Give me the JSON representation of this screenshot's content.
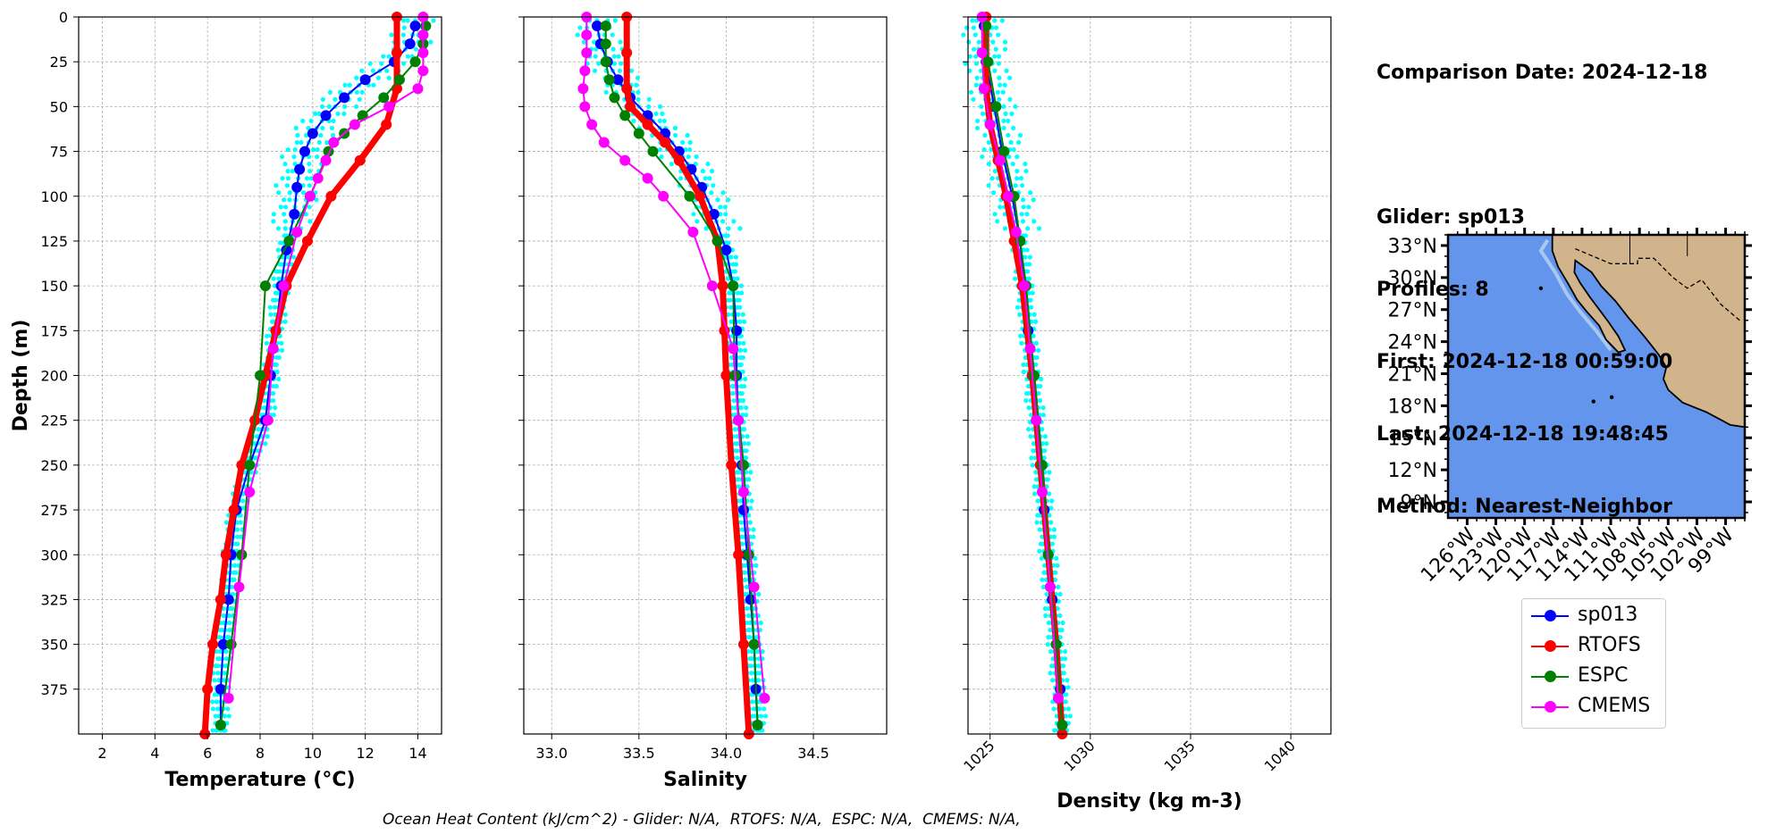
{
  "info": {
    "comparison_date": "Comparison Date: 2024-12-18",
    "glider": "Glider: sp013",
    "profiles": "Profiles: 8",
    "first": "First: 2024-12-18 00:59:00",
    "last": "Last: 2024-12-18 19:48:45",
    "method": "Method: Nearest-Neighbor"
  },
  "footer": "Ocean Heat Content (kJ/cm^2) - Glider: N/A,  RTOFS: N/A,  ESPC: N/A,  CMEMS: N/A,",
  "colors": {
    "sp013": "#0000ff",
    "RTOFS": "#ff0000",
    "ESPC": "#008000",
    "CMEMS": "#ff00ff",
    "raw": "#00ffff",
    "ocean": "#6495ed",
    "land": "#d2b48c"
  },
  "legend": [
    {
      "name": "sp013",
      "color": "#0000ff"
    },
    {
      "name": "RTOFS",
      "color": "#ff0000"
    },
    {
      "name": "ESPC",
      "color": "#008000"
    },
    {
      "name": "CMEMS",
      "color": "#ff00ff"
    }
  ],
  "chart_data": [
    {
      "type": "line",
      "xlabel": "Temperature (°C)",
      "ylabel": "Depth (m)",
      "xlim": [
        1.1,
        14.9
      ],
      "ylim": [
        400,
        0
      ],
      "xticks": [
        2,
        4,
        6,
        8,
        10,
        12,
        14
      ],
      "yticks": [
        0,
        25,
        50,
        75,
        100,
        125,
        150,
        175,
        200,
        225,
        250,
        275,
        300,
        325,
        350,
        375
      ],
      "grid": true,
      "series": [
        {
          "name": "sp013",
          "depth": [
            5,
            15,
            25,
            35,
            45,
            55,
            65,
            75,
            85,
            95,
            110,
            130,
            150,
            175,
            200,
            225,
            250,
            275,
            300,
            325,
            350,
            375,
            395
          ],
          "values": [
            13.9,
            13.7,
            13.1,
            12.0,
            11.2,
            10.5,
            10.0,
            9.7,
            9.5,
            9.4,
            9.3,
            9.0,
            8.8,
            8.6,
            8.4,
            8.2,
            7.6,
            7.1,
            6.9,
            6.8,
            6.6,
            6.5,
            6.5
          ]
        },
        {
          "name": "RTOFS",
          "depth": [
            0,
            20,
            40,
            60,
            80,
            100,
            125,
            150,
            175,
            200,
            225,
            250,
            275,
            300,
            325,
            350,
            375,
            400
          ],
          "values": [
            13.2,
            13.2,
            13.2,
            12.8,
            11.8,
            10.7,
            9.8,
            9.0,
            8.6,
            8.2,
            7.8,
            7.3,
            7.0,
            6.7,
            6.5,
            6.2,
            6.0,
            5.9
          ]
        },
        {
          "name": "ESPC",
          "depth": [
            5,
            15,
            25,
            35,
            45,
            55,
            65,
            75,
            100,
            125,
            150,
            200,
            250,
            300,
            350,
            395
          ],
          "values": [
            14.3,
            14.2,
            13.9,
            13.3,
            12.7,
            11.9,
            11.2,
            10.6,
            9.9,
            9.1,
            8.2,
            8.0,
            7.6,
            7.3,
            6.9,
            6.5
          ]
        },
        {
          "name": "CMEMS",
          "depth": [
            0,
            10,
            20,
            30,
            40,
            50,
            60,
            70,
            80,
            90,
            100,
            120,
            150,
            185,
            225,
            265,
            318,
            380
          ],
          "values": [
            14.2,
            14.2,
            14.2,
            14.2,
            14.0,
            12.9,
            11.6,
            10.8,
            10.5,
            10.2,
            9.9,
            9.4,
            8.9,
            8.5,
            8.3,
            7.6,
            7.2,
            6.8
          ]
        }
      ]
    },
    {
      "type": "line",
      "xlabel": "Salinity",
      "ylabel": "",
      "xlim": [
        32.84,
        34.92
      ],
      "ylim": [
        400,
        0
      ],
      "xticks": [
        33.0,
        33.5,
        34.0,
        34.5
      ],
      "xticklabels": [
        "33.0",
        "33.5",
        "34.0",
        "34.5"
      ],
      "grid": true,
      "series": [
        {
          "name": "sp013",
          "depth": [
            5,
            15,
            25,
            35,
            45,
            55,
            65,
            75,
            85,
            95,
            110,
            130,
            150,
            175,
            200,
            225,
            250,
            275,
            300,
            325,
            350,
            375,
            395
          ],
          "values": [
            33.26,
            33.28,
            33.32,
            33.38,
            33.45,
            33.55,
            33.65,
            33.73,
            33.8,
            33.86,
            33.93,
            34.0,
            34.04,
            34.06,
            34.06,
            34.07,
            34.09,
            34.1,
            34.12,
            34.14,
            34.16,
            34.17,
            34.18
          ]
        },
        {
          "name": "RTOFS",
          "depth": [
            0,
            20,
            40,
            50,
            60,
            70,
            80,
            100,
            125,
            150,
            175,
            200,
            250,
            300,
            350,
            400
          ],
          "values": [
            33.43,
            33.43,
            33.43,
            33.45,
            33.55,
            33.65,
            33.73,
            33.85,
            33.95,
            33.98,
            33.99,
            34.0,
            34.03,
            34.07,
            34.1,
            34.13
          ]
        },
        {
          "name": "ESPC",
          "depth": [
            5,
            15,
            25,
            35,
            45,
            55,
            65,
            75,
            100,
            125,
            150,
            200,
            250,
            300,
            350,
            395
          ],
          "values": [
            33.31,
            33.31,
            33.31,
            33.33,
            33.36,
            33.42,
            33.5,
            33.58,
            33.79,
            33.95,
            34.04,
            34.05,
            34.1,
            34.13,
            34.16,
            34.18
          ]
        },
        {
          "name": "CMEMS",
          "depth": [
            0,
            10,
            20,
            30,
            40,
            50,
            60,
            70,
            80,
            90,
            100,
            120,
            150,
            185,
            225,
            265,
            318,
            380
          ],
          "values": [
            33.2,
            33.2,
            33.2,
            33.19,
            33.18,
            33.19,
            33.23,
            33.3,
            33.42,
            33.55,
            33.64,
            33.81,
            33.92,
            34.04,
            34.07,
            34.1,
            34.16,
            34.22
          ]
        }
      ]
    },
    {
      "type": "line",
      "xlabel": "Density (kg m-3)",
      "ylabel": "",
      "xlim": [
        1023.9,
        1042.0
      ],
      "ylim": [
        400,
        0
      ],
      "xticks": [
        1025,
        1030,
        1035,
        1040
      ],
      "grid": true,
      "series": [
        {
          "name": "sp013",
          "depth": [
            5,
            25,
            50,
            75,
            100,
            125,
            150,
            175,
            200,
            225,
            250,
            275,
            300,
            325,
            350,
            375,
            395
          ],
          "values": [
            1024.7,
            1024.8,
            1025.2,
            1025.6,
            1026.1,
            1026.5,
            1026.7,
            1026.9,
            1027.1,
            1027.3,
            1027.5,
            1027.7,
            1027.9,
            1028.1,
            1028.3,
            1028.5,
            1028.6
          ]
        },
        {
          "name": "RTOFS",
          "depth": [
            0,
            40,
            60,
            80,
            100,
            125,
            150,
            200,
            250,
            300,
            350,
            400
          ],
          "values": [
            1024.8,
            1024.8,
            1025.0,
            1025.4,
            1025.8,
            1026.2,
            1026.6,
            1027.1,
            1027.5,
            1027.9,
            1028.3,
            1028.6
          ]
        },
        {
          "name": "ESPC",
          "depth": [
            5,
            25,
            50,
            75,
            100,
            125,
            150,
            200,
            250,
            300,
            350,
            395
          ],
          "values": [
            1024.8,
            1024.9,
            1025.3,
            1025.7,
            1026.2,
            1026.5,
            1026.8,
            1027.2,
            1027.6,
            1027.9,
            1028.3,
            1028.6
          ]
        },
        {
          "name": "CMEMS",
          "depth": [
            0,
            20,
            40,
            60,
            80,
            100,
            120,
            150,
            185,
            225,
            265,
            318,
            380
          ],
          "values": [
            1024.6,
            1024.6,
            1024.7,
            1025.0,
            1025.5,
            1025.9,
            1026.3,
            1026.7,
            1027.0,
            1027.3,
            1027.6,
            1028.0,
            1028.4
          ]
        }
      ]
    }
  ],
  "map": {
    "lat_ticks": [
      "33°N",
      "30°N",
      "27°N",
      "24°N",
      "21°N",
      "18°N",
      "15°N",
      "12°N",
      "9°N"
    ],
    "lon_ticks": [
      "126°W",
      "123°W",
      "120°W",
      "117°W",
      "114°W",
      "111°W",
      "108°W",
      "105°W",
      "102°W",
      "99°W"
    ]
  }
}
